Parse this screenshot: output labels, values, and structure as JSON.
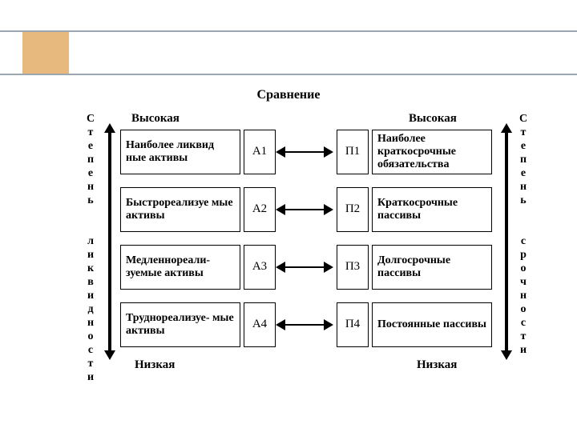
{
  "accent_color": "#e8b97e",
  "rule_color": "#9aa6b2",
  "title": "Сравнение",
  "left_vertical_label": "Степень ликвидности",
  "right_vertical_label": "Степень срочности",
  "scale_high": "Высокая",
  "scale_low": "Низкая",
  "rows": [
    {
      "a_text": "Наиболее ликвид ные активы",
      "a_code": "А1",
      "p_code": "П1",
      "p_text": "Наиболее краткосрочные обязательства"
    },
    {
      "a_text": "Быстрореализуе мые активы",
      "a_code": "А2",
      "p_code": "П2",
      "p_text": "Краткосрочные пассивы"
    },
    {
      "a_text": "Медленнореали- зуемые активы",
      "a_code": "А3",
      "p_code": "П3",
      "p_text": "Долгосрочные пассивы"
    },
    {
      "a_text": "Труднореализуе- мые активы",
      "a_code": "А4",
      "p_code": "П4",
      "p_text": "Постоянные пассивы"
    }
  ]
}
